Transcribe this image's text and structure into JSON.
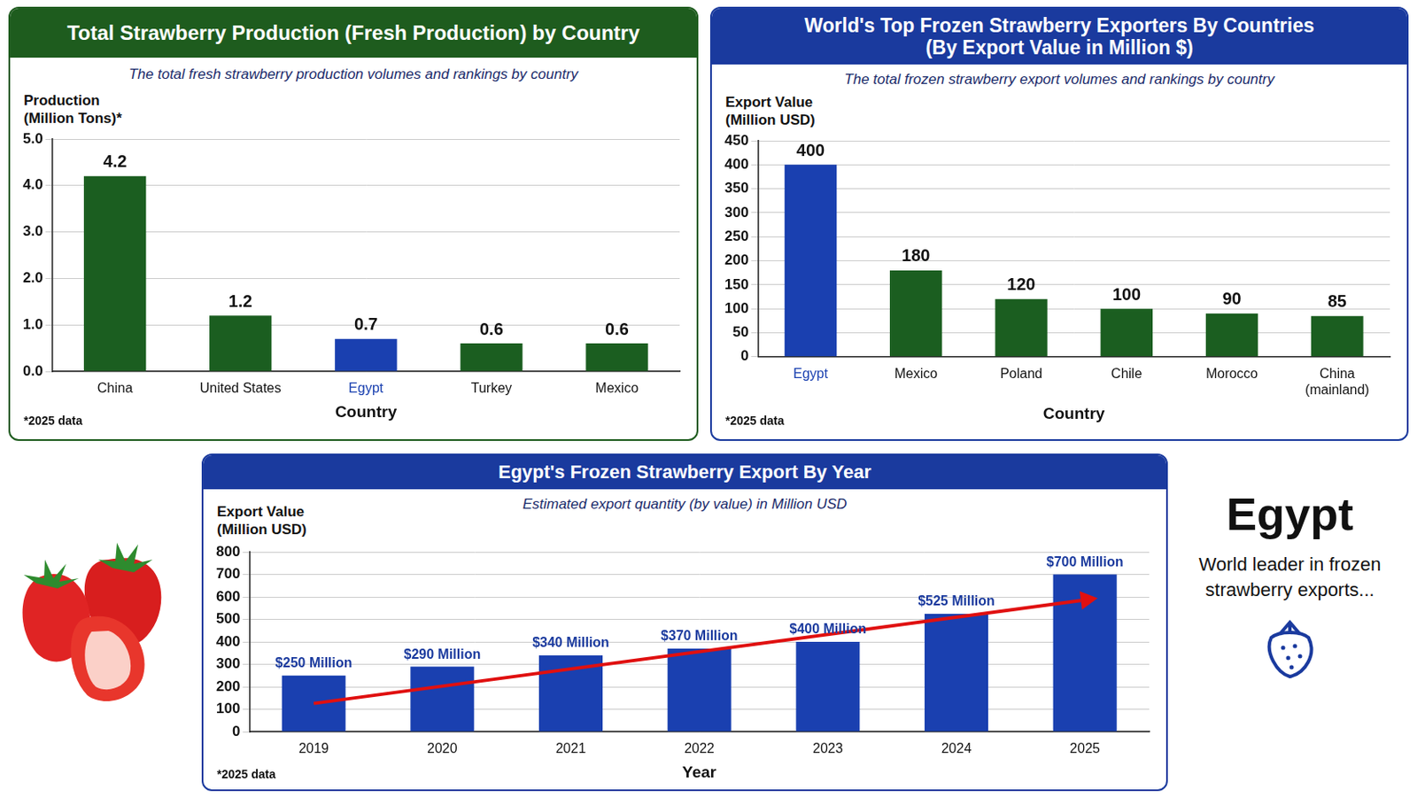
{
  "chart_data": [
    {
      "type": "bar",
      "title": "Total Strawberry Production (Fresh Production) by Country",
      "subtitle": "The total fresh strawberry production volumes and rankings by country",
      "y_label": "Production (Million Tons)*",
      "x_label": "Country",
      "note": "*2025 data",
      "categories": [
        "China",
        "United States",
        "Egypt",
        "Turkey",
        "Mexico"
      ],
      "values": [
        4.2,
        1.2,
        0.7,
        0.6,
        0.6
      ],
      "colors": [
        "#1b5e20",
        "#1b5e20",
        "#1a40b0",
        "#1b5e20",
        "#1b5e20"
      ],
      "ylim": [
        0,
        5
      ],
      "yticks": [
        {
          "value": 0,
          "label": "0.0"
        },
        {
          "value": 1,
          "label": "1.0"
        },
        {
          "value": 2,
          "label": "2.0"
        },
        {
          "value": 3,
          "label": "3.0"
        },
        {
          "value": 4,
          "label": "4.0"
        },
        {
          "value": 5,
          "label": "5.0"
        }
      ],
      "grid": true,
      "data_labels": true
    },
    {
      "type": "bar",
      "title": "World's Top Frozen Strawberry Exporters By Countries (By Export Value in Million $)",
      "subtitle": "The total frozen strawberry export volumes and rankings by country",
      "y_label": "Export Value (Million USD)",
      "x_label": "Country",
      "note": "*2025 data",
      "categories": [
        "Egypt",
        "Mexico",
        "Poland",
        "Chile",
        "Morocco",
        "China (mainland)"
      ],
      "values": [
        400,
        180,
        120,
        100,
        90,
        85
      ],
      "colors": [
        "#1a40b0",
        "#1b5e20",
        "#1b5e20",
        "#1b5e20",
        "#1b5e20",
        "#1b5e20"
      ],
      "ylim": [
        0,
        450
      ],
      "yticks": [
        0,
        50,
        100,
        150,
        200,
        250,
        300,
        350,
        400,
        450
      ],
      "grid": true,
      "data_labels": true
    },
    {
      "type": "bar",
      "title": "Egypt's Frozen Strawberry Export By Year",
      "subtitle": "Estimated export quantity (by value) in Million USD",
      "y_label": "Export Value (Million USD)",
      "x_label": "Year",
      "note": "*2025 data",
      "categories": [
        "2019",
        "2020",
        "2021",
        "2022",
        "2023",
        "2024",
        "2025"
      ],
      "values": [
        250,
        290,
        340,
        370,
        400,
        525,
        700
      ],
      "value_labels": [
        "$250 Million",
        "$290 Million",
        "$340 Million",
        "$370 Million",
        "$400 Million",
        "$525 Million",
        "$700 Million"
      ],
      "color": "#1a40b0",
      "ylim": [
        0,
        800
      ],
      "yticks": [
        0,
        100,
        200,
        300,
        400,
        500,
        600,
        700,
        800
      ],
      "grid": true,
      "data_labels": true
    }
  ],
  "sidebar": {
    "heading": "Egypt",
    "text": "World leader in frozen strawberry exports..."
  }
}
